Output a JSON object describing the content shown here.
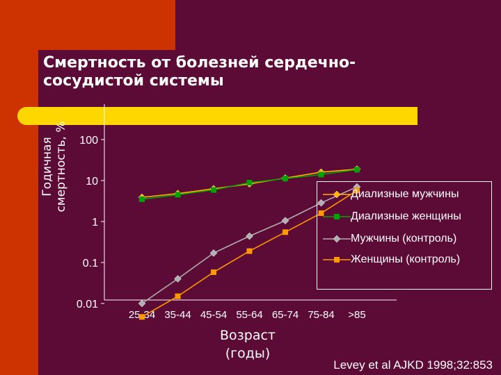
{
  "title": "Смертность от болезней сердечно-\nсосудистой системы",
  "citation": "Levey et al AJKD 1998;32:853",
  "chart_data": {
    "type": "line",
    "title": "Смертность от болезней сердечно-сосудистой системы",
    "xlabel": "Возраст\n(годы)",
    "ylabel": "Годичная\nсмертность, %",
    "yscale": "log",
    "ylim": [
      0.005,
      100
    ],
    "yticks": [
      100,
      10,
      1,
      0.1,
      0.01
    ],
    "ytick_labels": [
      "100",
      "10",
      "1",
      "0.1",
      "0.01"
    ],
    "categories": [
      "25-34",
      "35-44",
      "45-54",
      "55-64",
      "65-74",
      "75-84",
      ">85"
    ],
    "grid": false,
    "legend_position": "right",
    "series": [
      {
        "name": "Диализные мужчины",
        "marker": "diamond",
        "color": "#ffb300",
        "values": [
          3.9,
          4.8,
          6.3,
          8.3,
          11.5,
          16,
          19
        ]
      },
      {
        "name": "Диализные женщины",
        "marker": "square",
        "color": "#00a400",
        "values": [
          3.5,
          4.5,
          5.9,
          8.9,
          11.2,
          14,
          18.5
        ]
      },
      {
        "name": "Мужчины (контроль)",
        "marker": "diamond",
        "color": "#b0b0b0",
        "values": [
          0.01,
          0.04,
          0.17,
          0.44,
          1.05,
          2.85,
          7
        ]
      },
      {
        "name": "Женщины (контроль)",
        "marker": "square",
        "color": "#ff9900",
        "values": [
          0.0047,
          0.015,
          0.058,
          0.19,
          0.55,
          1.6,
          5.7
        ]
      }
    ]
  }
}
